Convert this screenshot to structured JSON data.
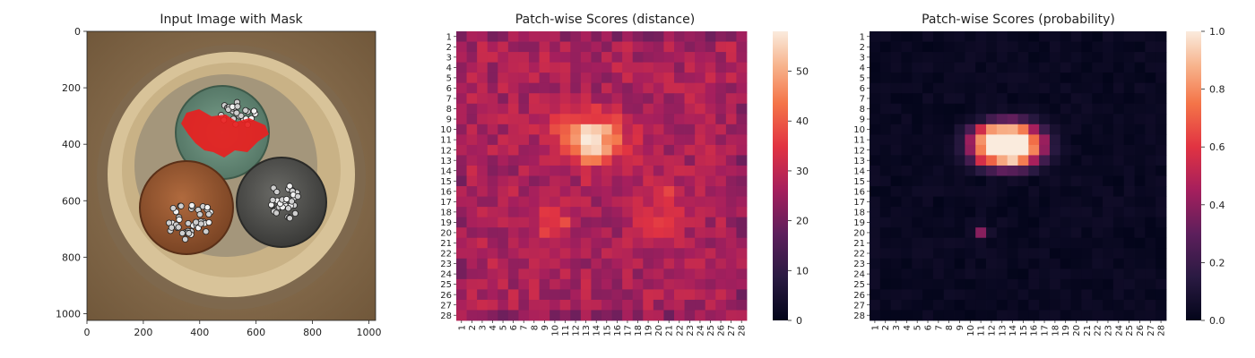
{
  "chart_data": [
    {
      "type": "image",
      "title": "Input Image with Mask",
      "xticks": [
        "0",
        "200",
        "400",
        "600",
        "800",
        "1000"
      ],
      "yticks": [
        "0",
        "200",
        "400",
        "600",
        "800",
        "1000"
      ],
      "xlim": [
        0,
        1024
      ],
      "ylim": [
        1024,
        0
      ],
      "mask_color": "#e82020",
      "background_color": "#8a6c4a"
    },
    {
      "type": "heatmap",
      "title": "Patch-wise Scores (distance)",
      "grid_size": 28,
      "row_labels": [
        "1",
        "2",
        "3",
        "4",
        "5",
        "6",
        "7",
        "8",
        "9",
        "10",
        "11",
        "12",
        "13",
        "14",
        "15",
        "16",
        "17",
        "18",
        "19",
        "20",
        "21",
        "22",
        "23",
        "24",
        "25",
        "26",
        "27",
        "28"
      ],
      "col_labels": [
        "1",
        "2",
        "3",
        "4",
        "5",
        "6",
        "7",
        "8",
        "9",
        "10",
        "11",
        "12",
        "13",
        "14",
        "15",
        "16",
        "17",
        "18",
        "19",
        "20",
        "21",
        "22",
        "23",
        "24",
        "25",
        "26",
        "27",
        "28"
      ],
      "colorbar": {
        "min": 0,
        "max": 58,
        "ticks": [
          "0",
          "10",
          "20",
          "30",
          "40",
          "50"
        ]
      },
      "peak": {
        "row": 11,
        "col": 13,
        "value": 58
      },
      "secondary_peaks": [
        {
          "row": 19,
          "col": 10,
          "value": 40
        },
        {
          "row": 19,
          "col": 20,
          "value": 39
        }
      ],
      "baseline_value": 28
    },
    {
      "type": "heatmap",
      "title": "Patch-wise Scores (probability)",
      "grid_size": 28,
      "row_labels": [
        "1",
        "2",
        "3",
        "4",
        "5",
        "6",
        "7",
        "8",
        "9",
        "10",
        "11",
        "12",
        "13",
        "14",
        "15",
        "16",
        "17",
        "18",
        "19",
        "20",
        "21",
        "22",
        "23",
        "24",
        "25",
        "26",
        "27",
        "28"
      ],
      "col_labels": [
        "1",
        "2",
        "3",
        "4",
        "5",
        "6",
        "7",
        "8",
        "9",
        "10",
        "11",
        "12",
        "13",
        "14",
        "15",
        "16",
        "17",
        "18",
        "19",
        "20",
        "21",
        "22",
        "23",
        "24",
        "25",
        "26",
        "27",
        "28"
      ],
      "colorbar": {
        "min": 0.0,
        "max": 1.0,
        "ticks": [
          "0.0",
          "0.2",
          "0.4",
          "0.6",
          "0.8",
          "1.0"
        ]
      },
      "hot_region": {
        "rows": [
          8,
          14
        ],
        "cols": [
          9,
          17
        ],
        "peak_value": 1.0
      },
      "baseline_value": 0.0
    }
  ]
}
